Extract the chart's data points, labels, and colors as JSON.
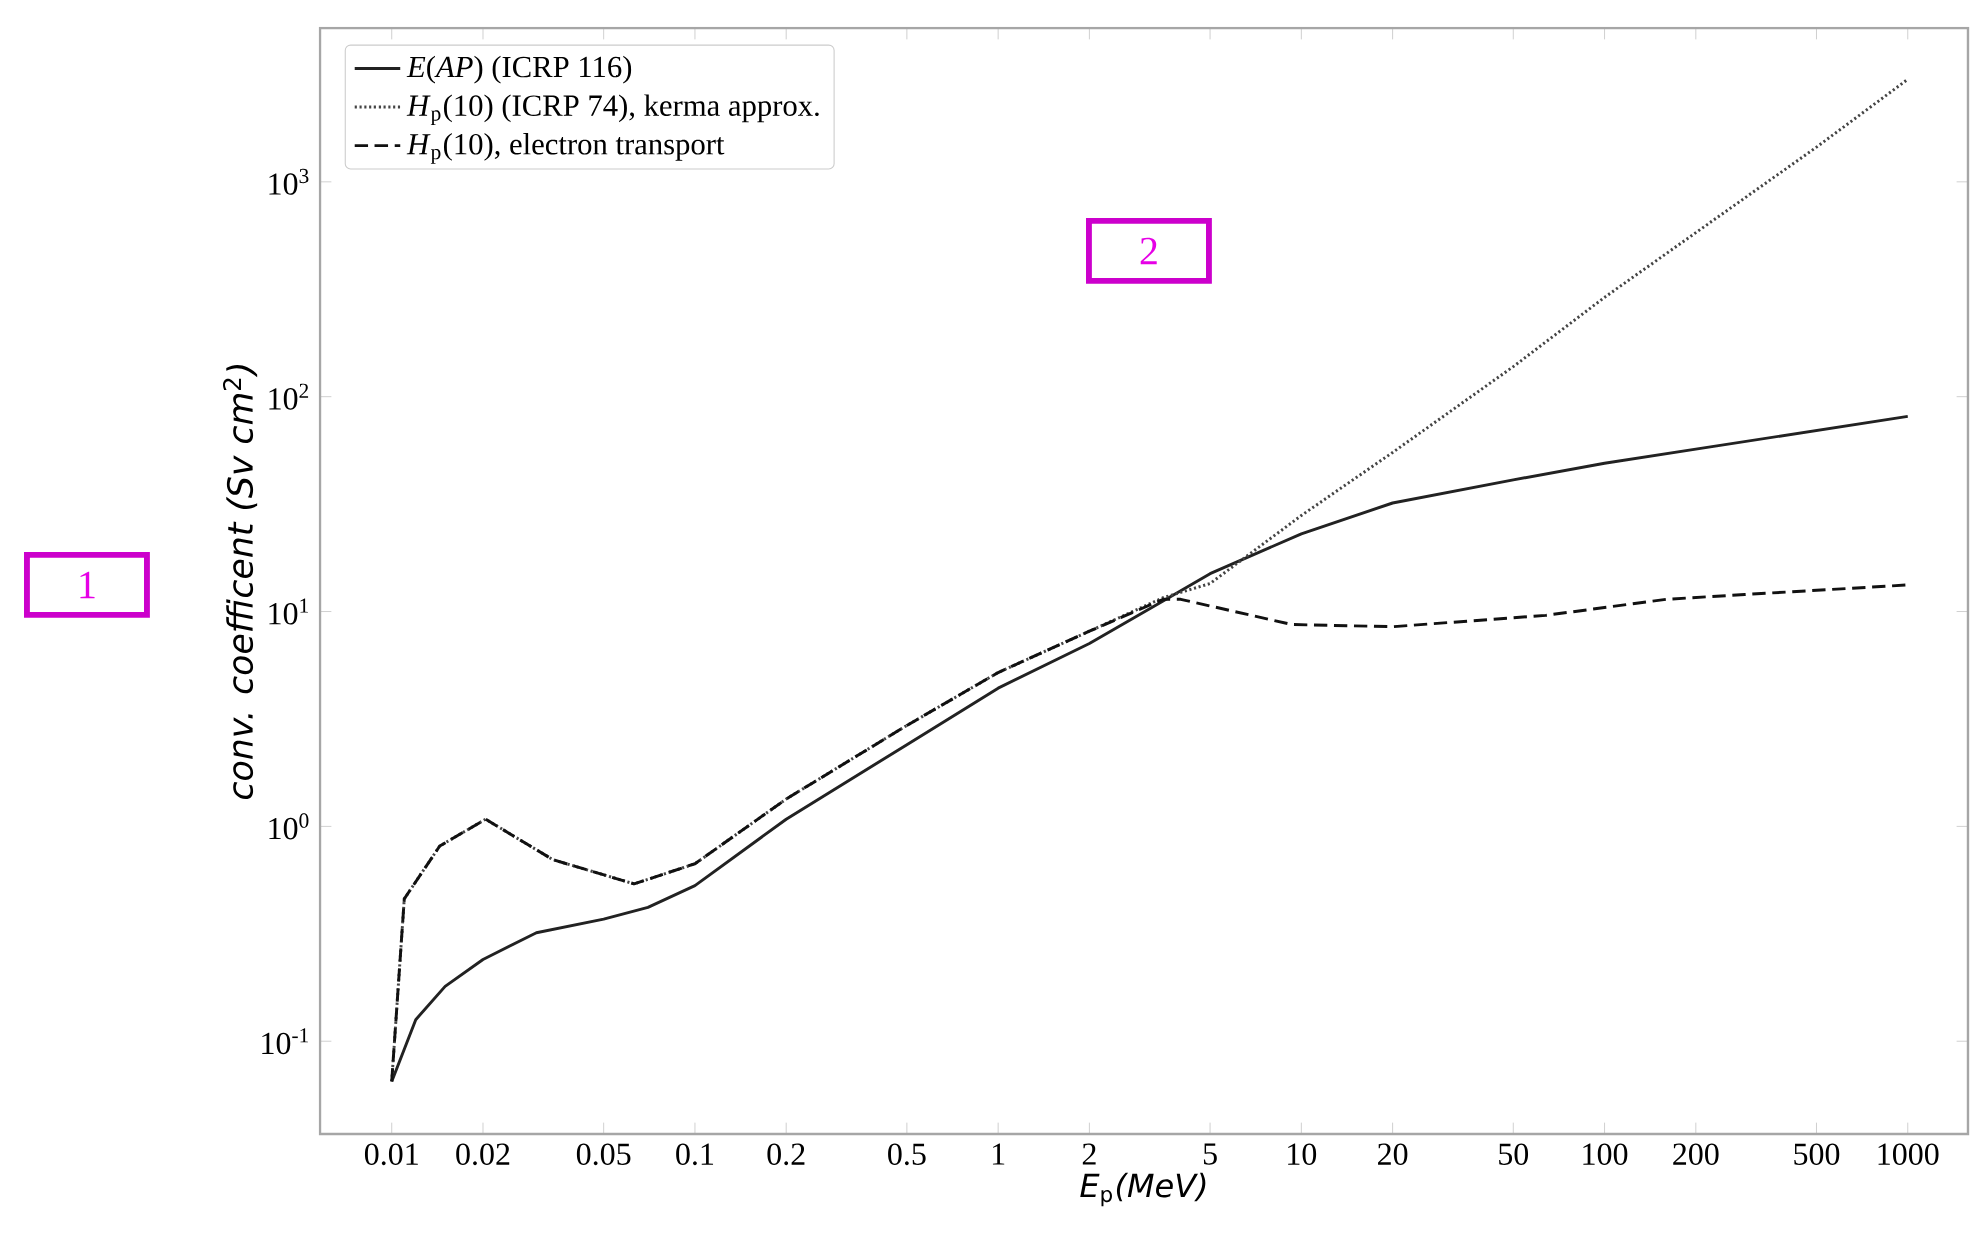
{
  "chart_data": {
    "type": "line",
    "xlabel": "*E*$_{p}$*(MeV)*",
    "ylabel": "*conv. coefficent (Sv cm*$^{2}$*)*",
    "log": "xy",
    "legend": "top left",
    "grid": false,
    "marker": "none",
    "xlim": [
      0.0058,
      1580
    ],
    "ylim": [
      0.037,
      5200
    ],
    "xticks": [
      0.01,
      0.02,
      0.05,
      0.1,
      0.2,
      0.5,
      1,
      2,
      5,
      10,
      20,
      50,
      100,
      200,
      500,
      1000
    ],
    "yticks": [
      {
        "value": 0.1,
        "label": "10$^{-1}$"
      },
      {
        "value": 1,
        "label": "10$^{0}$"
      },
      {
        "value": 10,
        "label": "10$^{1}$"
      },
      {
        "value": 100,
        "label": "10$^{2}$"
      },
      {
        "value": 1000,
        "label": "10$^{3}$"
      }
    ],
    "series": [
      {
        "name": "*E*(*AP*) (ICRP 116)",
        "color": "#222222",
        "line_style": "solid",
        "x": [
          0.01,
          0.012,
          0.015,
          0.02,
          0.03,
          0.05,
          0.07,
          0.1,
          0.2,
          0.5,
          1,
          2,
          3.5,
          5,
          10,
          20,
          50,
          100,
          200,
          1000
        ],
        "values": [
          0.065,
          0.126,
          0.18,
          0.24,
          0.32,
          0.37,
          0.42,
          0.53,
          1.08,
          2.4,
          4.4,
          7.1,
          11.2,
          15,
          23,
          32,
          41,
          49,
          57,
          81
        ]
      },
      {
        "name": "*H*$_{p}$(10) (ICRP 74), kerma approx.",
        "color": "#444444",
        "line_style": "dotted",
        "x": [
          0.01,
          0.011,
          0.0144,
          0.0204,
          0.034,
          0.063,
          0.1,
          0.2,
          0.5,
          1,
          2,
          3.5,
          5,
          10,
          20,
          50,
          100,
          200,
          500,
          1000
        ],
        "values": [
          0.065,
          0.46,
          0.81,
          1.08,
          0.7,
          0.54,
          0.67,
          1.34,
          2.95,
          5.2,
          8.1,
          11.6,
          13.5,
          28,
          55,
          138,
          290,
          580,
          1450,
          3000
        ]
      },
      {
        "name": "*H*$_{p}$(10), electron transport",
        "color": "#111111",
        "line_style": "dashed",
        "x": [
          0.01,
          0.011,
          0.0144,
          0.0204,
          0.034,
          0.063,
          0.1,
          0.2,
          0.5,
          1,
          2,
          3.5,
          4,
          9.3,
          20,
          64,
          160,
          290,
          1000
        ],
        "values": [
          0.065,
          0.46,
          0.81,
          1.08,
          0.7,
          0.54,
          0.67,
          1.34,
          2.95,
          5.2,
          8.1,
          11.4,
          11.4,
          8.7,
          8.5,
          9.6,
          11.4,
          12,
          13.3
        ]
      }
    ],
    "annotations": [
      "1",
      "2"
    ]
  }
}
